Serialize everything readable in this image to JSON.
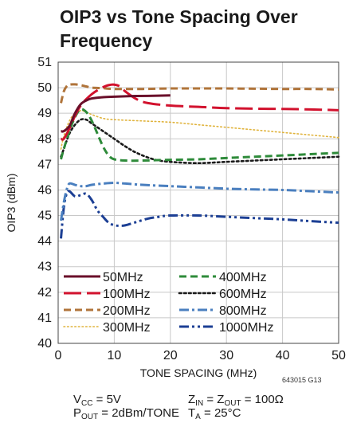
{
  "title_lines": [
    "OIP3 vs Tone Spacing Over",
    "Frequency"
  ],
  "figure_id": "643015 G13",
  "conditions": {
    "vcc": {
      "sym": "V",
      "sub": "CC",
      "rest": " = 5V"
    },
    "pout": {
      "sym": "P",
      "sub": "OUT",
      "rest": " = 2dBm/TONE"
    },
    "zin": {
      "sym": "Z",
      "sub": "IN",
      "mid": " = Z",
      "sub2": "OUT",
      "rest": " = 100Ω"
    },
    "ta": {
      "sym": "T",
      "sub": "A",
      "rest": " = 25°C"
    }
  },
  "chart_data": {
    "type": "line",
    "title": "OIP3 vs Tone Spacing Over Frequency",
    "xlabel": "TONE SPACING (MHz)",
    "ylabel": "OIP3 (dBm)",
    "xlim": [
      0,
      50
    ],
    "ylim": [
      40,
      51
    ],
    "xticks": [
      0,
      10,
      20,
      30,
      40,
      50
    ],
    "yticks": [
      40,
      41,
      42,
      43,
      44,
      45,
      46,
      47,
      48,
      49,
      50,
      51
    ],
    "grid": true,
    "legend_position": "bottom-left",
    "series": [
      {
        "name": "50MHz",
        "color": "#6a0f2a",
        "dash": "solid",
        "width": 3,
        "x": [
          0.5,
          1,
          2,
          3,
          4,
          5,
          6,
          8,
          10,
          13,
          16,
          20
        ],
        "y": [
          48.3,
          48.3,
          48.5,
          49.0,
          49.35,
          49.5,
          49.58,
          49.63,
          49.65,
          49.67,
          49.68,
          49.7
        ]
      },
      {
        "name": "100MHz",
        "color": "#d2122e",
        "dash": "long",
        "width": 3,
        "x": [
          0.5,
          1,
          2,
          3,
          4,
          5,
          6,
          7,
          8,
          9,
          10,
          11,
          12,
          14,
          16,
          20,
          25,
          30,
          35,
          40,
          45,
          50
        ],
        "y": [
          48.0,
          48.0,
          48.4,
          48.9,
          49.3,
          49.55,
          49.75,
          49.9,
          50.02,
          50.1,
          50.12,
          50.05,
          49.85,
          49.55,
          49.4,
          49.3,
          49.25,
          49.2,
          49.18,
          49.17,
          49.15,
          49.12
        ]
      },
      {
        "name": "200MHz",
        "color": "#b0743a",
        "dash": "dash",
        "width": 3,
        "x": [
          0.5,
          1,
          1.5,
          2,
          3,
          4,
          5,
          6,
          8,
          10,
          15,
          20,
          25,
          30,
          35,
          40,
          45,
          50
        ],
        "y": [
          49.4,
          49.85,
          50.05,
          50.12,
          50.13,
          50.1,
          50.05,
          50.0,
          49.98,
          49.95,
          49.95,
          49.97,
          49.97,
          49.97,
          49.96,
          49.95,
          49.95,
          49.93
        ]
      },
      {
        "name": "300MHz",
        "color": "#e0b33c",
        "dash": "dot",
        "width": 1.6,
        "x": [
          0.5,
          1,
          2,
          3,
          4,
          5,
          6,
          8,
          10,
          15,
          20,
          25,
          30,
          35,
          40,
          45,
          50
        ],
        "y": [
          47.6,
          48.1,
          48.7,
          49.0,
          49.1,
          49.05,
          48.95,
          48.8,
          48.75,
          48.7,
          48.65,
          48.55,
          48.45,
          48.35,
          48.25,
          48.15,
          48.05
        ]
      },
      {
        "name": "400MHz",
        "color": "#2e8b3a",
        "dash": "dash",
        "width": 3,
        "x": [
          0.5,
          1,
          2,
          3,
          4,
          5,
          6,
          7,
          8,
          9,
          10,
          12,
          15,
          20,
          25,
          30,
          35,
          40,
          45,
          50
        ],
        "y": [
          47.2,
          47.6,
          48.3,
          48.85,
          49.15,
          49.05,
          48.7,
          48.2,
          47.7,
          47.35,
          47.2,
          47.15,
          47.15,
          47.18,
          47.2,
          47.25,
          47.3,
          47.35,
          47.4,
          47.45
        ]
      },
      {
        "name": "600MHz",
        "color": "#1a1a1a",
        "dash": "dotbold",
        "width": 2.6,
        "x": [
          0.5,
          1,
          2,
          3,
          4,
          5,
          6,
          8,
          10,
          12,
          14,
          17,
          20,
          25,
          30,
          35,
          40,
          45,
          50
        ],
        "y": [
          47.3,
          47.6,
          48.2,
          48.55,
          48.75,
          48.75,
          48.6,
          48.3,
          48.0,
          47.7,
          47.45,
          47.2,
          47.1,
          47.05,
          47.1,
          47.15,
          47.2,
          47.25,
          47.3
        ]
      },
      {
        "name": "800MHz",
        "color": "#4a7fbf",
        "dash": "dashdot",
        "width": 3,
        "x": [
          0.5,
          1,
          1.5,
          2,
          3,
          4,
          5,
          6,
          8,
          10,
          12,
          15,
          20,
          25,
          30,
          35,
          40,
          45,
          50
        ],
        "y": [
          44.8,
          45.5,
          46.0,
          46.25,
          46.2,
          46.15,
          46.15,
          46.2,
          46.25,
          46.28,
          46.25,
          46.2,
          46.15,
          46.1,
          46.05,
          46.02,
          46.0,
          45.95,
          45.9
        ]
      },
      {
        "name": "1000MHz",
        "color": "#1c3f94",
        "dash": "dashdotdot",
        "width": 3,
        "x": [
          0.5,
          1,
          1.5,
          2,
          3,
          4,
          5,
          6,
          7,
          8,
          9,
          10,
          11,
          12,
          14,
          16,
          18,
          20,
          25,
          30,
          35,
          40,
          45,
          50
        ],
        "y": [
          44.1,
          45.3,
          45.85,
          45.95,
          45.75,
          45.8,
          45.85,
          45.6,
          45.2,
          44.95,
          44.72,
          44.62,
          44.6,
          44.62,
          44.75,
          44.88,
          44.95,
          45.0,
          45.0,
          44.95,
          44.9,
          44.85,
          44.78,
          44.72
        ]
      }
    ]
  }
}
